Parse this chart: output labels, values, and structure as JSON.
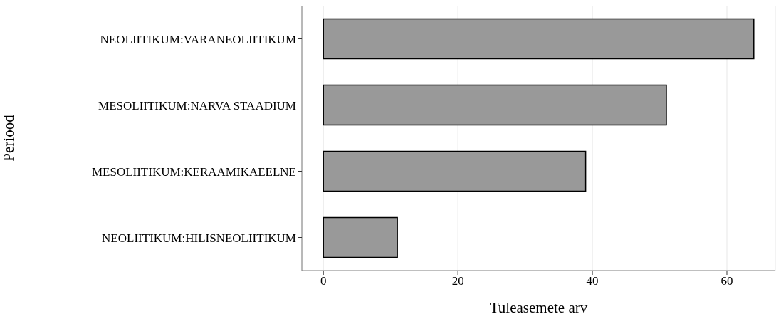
{
  "chart_data": {
    "type": "bar",
    "orientation": "horizontal",
    "categories": [
      "NEOLIITIKUM:VARANEOLIITIKUM",
      "MESOLIITIKUM:NARVA STAADIUM",
      "MESOLIITIKUM:KERAAMIKAEELNE",
      "NEOLIITIKUM:HILISNEOLIITIKUM"
    ],
    "values": [
      64,
      51,
      39,
      11
    ],
    "color": "#999999",
    "xlim": [
      -3.2,
      67.2
    ],
    "xticks": [
      0,
      20,
      40,
      60
    ],
    "grid": "x",
    "xlabel": "Tuleasemete arv",
    "ylabel": "Periood"
  }
}
